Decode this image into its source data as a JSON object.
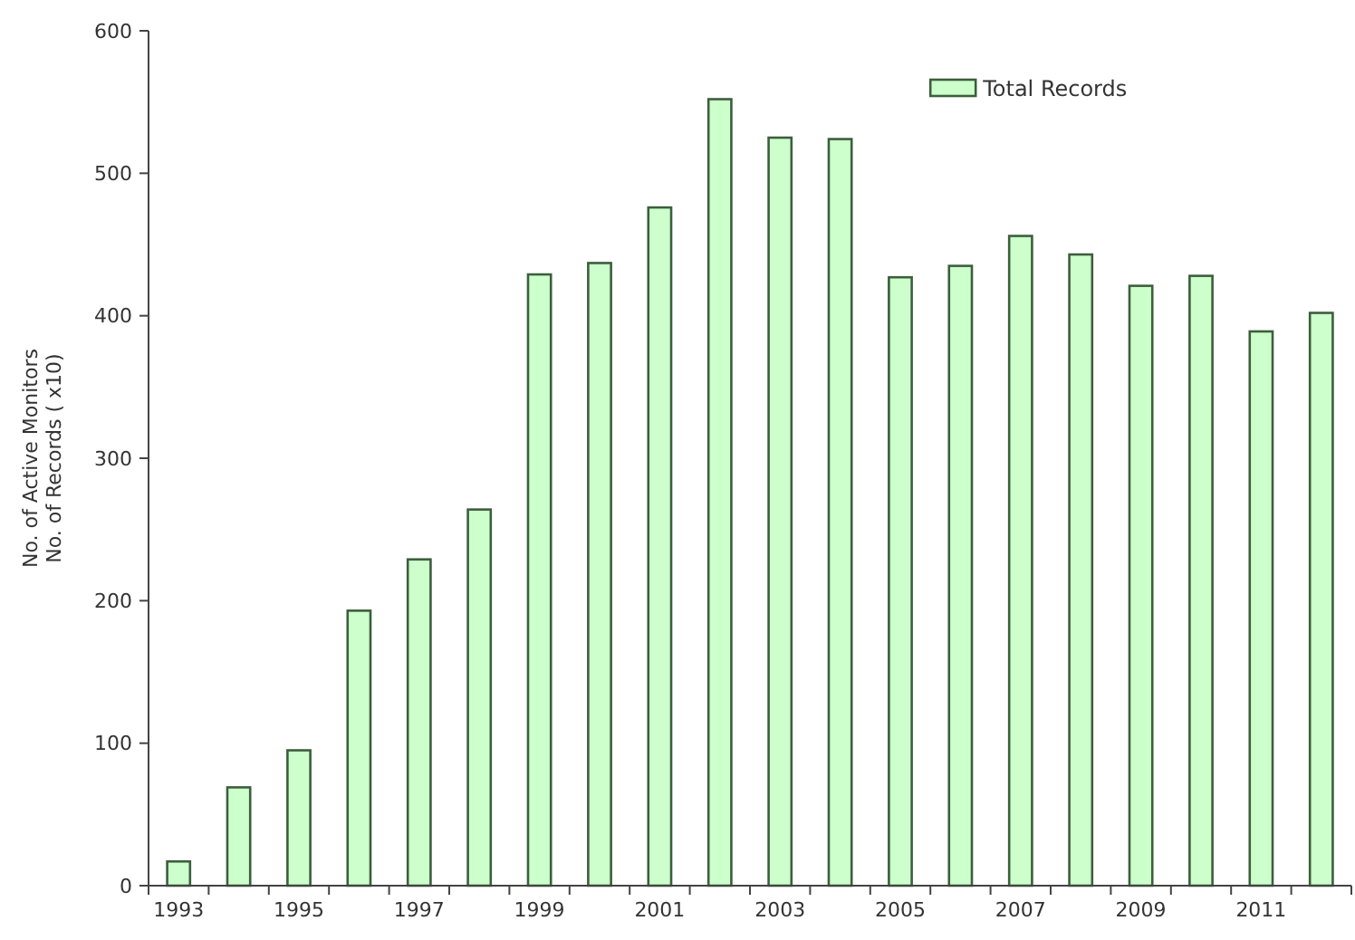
{
  "chart_data": {
    "type": "bar",
    "ylabel": "No. of Active Monitors\nNo. of Records ( x10)",
    "categories": [
      "1993",
      null,
      "1995",
      null,
      "1997",
      null,
      "1999",
      null,
      "2001",
      null,
      "2003",
      null,
      "2005",
      null,
      "2007",
      null,
      "2009",
      null,
      "2011",
      null
    ],
    "series": [
      {
        "name": "Total Records",
        "color": "#ccffcc",
        "values": [
          17,
          69,
          95,
          193,
          229,
          264,
          429,
          437,
          476,
          552,
          525,
          524,
          427,
          435,
          456,
          443,
          421,
          428,
          389,
          402
        ]
      }
    ],
    "ylim": [
      0,
      600
    ],
    "yticks": [
      0,
      100,
      200,
      300,
      400,
      500,
      600
    ],
    "grid": false,
    "legend": "top right"
  }
}
